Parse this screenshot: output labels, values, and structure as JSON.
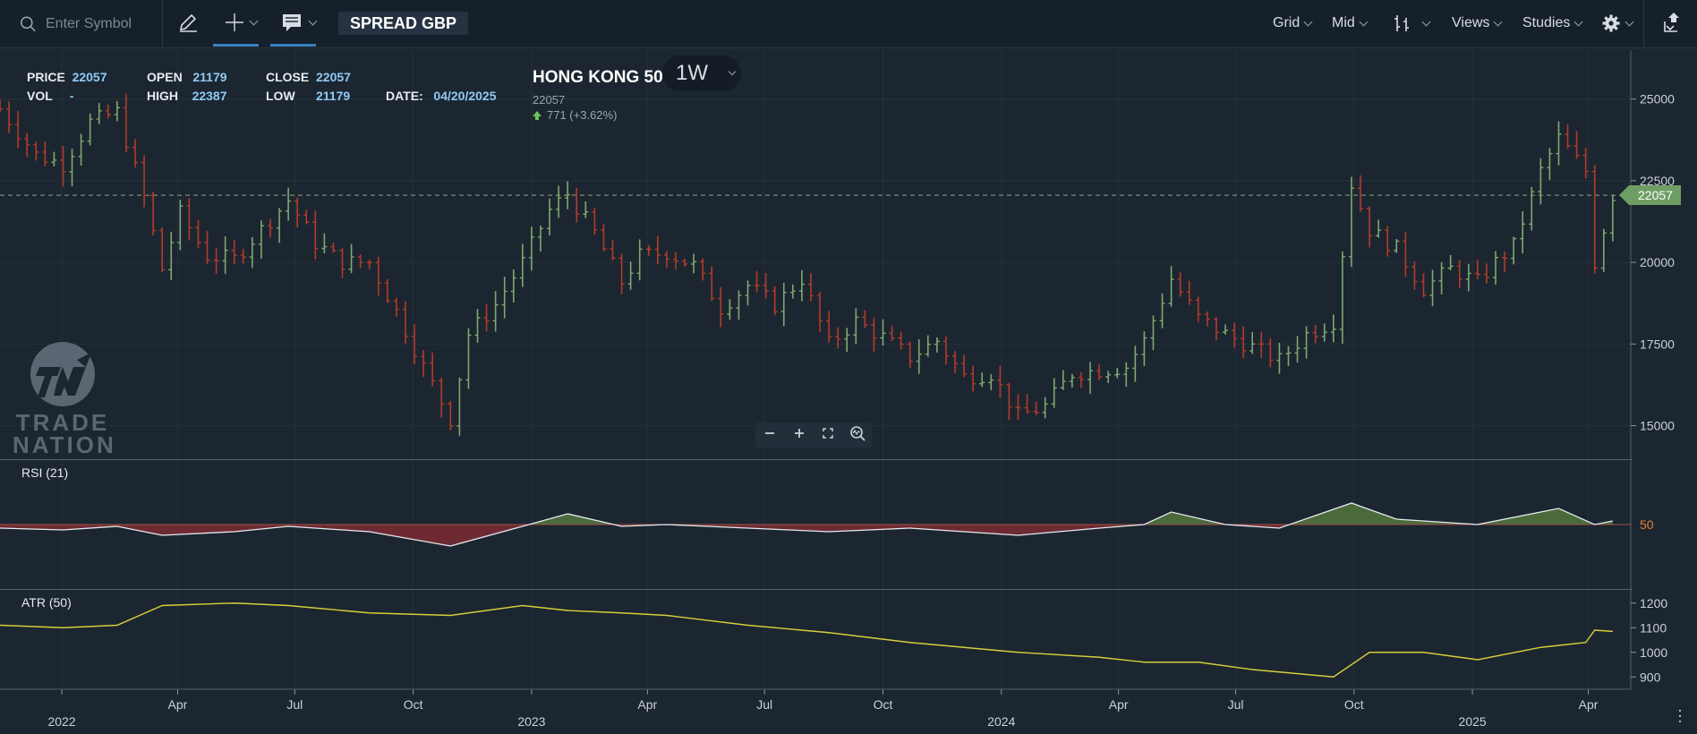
{
  "toolbar": {
    "search_placeholder": "Enter Symbol",
    "account_mode": "SPREAD GBP",
    "menus": [
      {
        "label": "Grid",
        "name": "grid-menu"
      },
      {
        "label": "Mid",
        "name": "mid-menu"
      },
      {
        "label": "Views",
        "name": "views-menu"
      },
      {
        "label": "Studies",
        "name": "studies-menu"
      }
    ],
    "icons": [
      "search-icon",
      "pencil-icon",
      "crosshair-icon",
      "comment-icon",
      "bar-chart-type-icon",
      "gear-icon",
      "export-icon"
    ]
  },
  "info": {
    "price_label": "PRICE",
    "price_value": "22057",
    "vol_label": "VOL",
    "vol_value": "-",
    "open_label": "OPEN",
    "open_value": "21179",
    "high_label": "HIGH",
    "high_value": "22387",
    "close_label": "CLOSE",
    "close_value": "22057",
    "low_label": "LOW",
    "low_value": "21179",
    "date_label": "DATE:",
    "date_value": "04/20/2025"
  },
  "instrument": {
    "name": "HONG KONG 50",
    "timeframe": "1W",
    "last": "22057",
    "change": "771 (+3.62%)"
  },
  "current_price_tag": "22057",
  "panes": {
    "rsi_label": "RSI (21)",
    "atr_label": "ATR (50)"
  },
  "logo": {
    "line1": "TRADE",
    "line2": "NATION"
  },
  "zoom_controls": [
    "zoom-out",
    "zoom-in",
    "fit",
    "reset-zoom"
  ],
  "colors": {
    "up": "#7fa870",
    "down": "#b23b2b",
    "rsi_fill_up": "#4b6a3c",
    "rsi_fill_down": "#6e2a33",
    "atr_line": "#d6cf3a",
    "price_tag": "#6e9e63"
  },
  "chart_data": {
    "type": "ohlc",
    "timeframe": "weekly",
    "x_labels": [
      {
        "label": "2022",
        "date": "2022-01-01",
        "bold": true
      },
      {
        "label": "Apr",
        "date": "2022-04-01"
      },
      {
        "label": "Jul",
        "date": "2022-07-01"
      },
      {
        "label": "Oct",
        "date": "2022-10-01"
      },
      {
        "label": "2023",
        "date": "2023-01-01",
        "bold": true
      },
      {
        "label": "Apr",
        "date": "2023-04-01"
      },
      {
        "label": "Jul",
        "date": "2023-07-01"
      },
      {
        "label": "Oct",
        "date": "2023-10-01"
      },
      {
        "label": "2024",
        "date": "2024-01-01",
        "bold": true
      },
      {
        "label": "Apr",
        "date": "2024-04-01"
      },
      {
        "label": "Jul",
        "date": "2024-07-01"
      },
      {
        "label": "Oct",
        "date": "2024-10-01"
      },
      {
        "label": "2025",
        "date": "2025-01-01",
        "bold": true
      },
      {
        "label": "Apr",
        "date": "2025-04-01"
      }
    ],
    "x_range": [
      "2021-11-14",
      "2025-05-04"
    ],
    "price_axis": {
      "ticks": [
        15000,
        17500,
        20000,
        22500,
        25000
      ],
      "range": [
        14000,
        26500
      ]
    },
    "current_price": 22057,
    "close_path": [
      [
        "2021-11-14",
        24700
      ],
      [
        "2021-12-12",
        23300
      ],
      [
        "2022-01-02",
        23000
      ],
      [
        "2022-01-23",
        24300
      ],
      [
        "2022-02-13",
        24600
      ],
      [
        "2022-03-06",
        22000
      ],
      [
        "2022-03-20",
        19800
      ],
      [
        "2022-04-03",
        21500
      ],
      [
        "2022-04-24",
        20200
      ],
      [
        "2022-05-15",
        20100
      ],
      [
        "2022-06-05",
        21000
      ],
      [
        "2022-06-26",
        21900
      ],
      [
        "2022-07-17",
        20600
      ],
      [
        "2022-08-07",
        20000
      ],
      [
        "2022-08-28",
        20000
      ],
      [
        "2022-09-18",
        18500
      ],
      [
        "2022-10-09",
        16800
      ],
      [
        "2022-10-30",
        15200
      ],
      [
        "2022-11-13",
        17800
      ],
      [
        "2022-12-04",
        18700
      ],
      [
        "2022-12-25",
        20000
      ],
      [
        "2023-01-15",
        21600
      ],
      [
        "2023-01-29",
        22100
      ],
      [
        "2023-02-19",
        20900
      ],
      [
        "2023-03-12",
        19400
      ],
      [
        "2023-03-26",
        20200
      ],
      [
        "2023-04-16",
        20300
      ],
      [
        "2023-05-07",
        19900
      ],
      [
        "2023-05-28",
        18600
      ],
      [
        "2023-06-18",
        19300
      ],
      [
        "2023-07-09",
        18700
      ],
      [
        "2023-07-30",
        19500
      ],
      [
        "2023-08-20",
        17500
      ],
      [
        "2023-09-10",
        18200
      ],
      [
        "2023-10-01",
        17700
      ],
      [
        "2023-10-22",
        17100
      ],
      [
        "2023-11-12",
        17600
      ],
      [
        "2023-12-03",
        16500
      ],
      [
        "2023-12-24",
        16600
      ],
      [
        "2024-01-14",
        15300
      ],
      [
        "2024-02-04",
        15600
      ],
      [
        "2024-02-25",
        16600
      ],
      [
        "2024-03-17",
        16700
      ],
      [
        "2024-04-07",
        16800
      ],
      [
        "2024-04-21",
        17600
      ],
      [
        "2024-05-12",
        19500
      ],
      [
        "2024-06-02",
        18300
      ],
      [
        "2024-06-23",
        17800
      ],
      [
        "2024-07-14",
        17400
      ],
      [
        "2024-08-04",
        17000
      ],
      [
        "2024-08-25",
        17800
      ],
      [
        "2024-09-15",
        18200
      ],
      [
        "2024-09-29",
        22400
      ],
      [
        "2024-10-13",
        21000
      ],
      [
        "2024-11-03",
        20400
      ],
      [
        "2024-11-24",
        19200
      ],
      [
        "2024-12-15",
        19800
      ],
      [
        "2025-01-05",
        19400
      ],
      [
        "2025-01-19",
        20000
      ],
      [
        "2025-02-02",
        20500
      ],
      [
        "2025-02-23",
        22800
      ],
      [
        "2025-03-09",
        23800
      ],
      [
        "2025-03-30",
        22800
      ],
      [
        "2025-04-06",
        20000
      ],
      [
        "2025-04-20",
        22057
      ]
    ],
    "rsi": {
      "label": "RSI (21)",
      "midline": 50,
      "points": [
        [
          "2021-11-14",
          48
        ],
        [
          "2022-01-02",
          47
        ],
        [
          "2022-02-13",
          49
        ],
        [
          "2022-03-20",
          44
        ],
        [
          "2022-05-15",
          46
        ],
        [
          "2022-06-26",
          49
        ],
        [
          "2022-08-28",
          46
        ],
        [
          "2022-10-30",
          38
        ],
        [
          "2022-12-25",
          49
        ],
        [
          "2023-01-29",
          56
        ],
        [
          "2023-03-12",
          49
        ],
        [
          "2023-04-16",
          50
        ],
        [
          "2023-06-18",
          48
        ],
        [
          "2023-08-20",
          46
        ],
        [
          "2023-10-22",
          48
        ],
        [
          "2024-01-14",
          44
        ],
        [
          "2024-03-17",
          48
        ],
        [
          "2024-04-21",
          50
        ],
        [
          "2024-05-12",
          57
        ],
        [
          "2024-06-23",
          50
        ],
        [
          "2024-08-04",
          48
        ],
        [
          "2024-09-29",
          62
        ],
        [
          "2024-11-03",
          53
        ],
        [
          "2025-01-05",
          50
        ],
        [
          "2025-03-09",
          59
        ],
        [
          "2025-04-06",
          50
        ],
        [
          "2025-04-20",
          52
        ]
      ]
    },
    "atr": {
      "label": "ATR (50)",
      "ticks": [
        900,
        1000,
        1100,
        1200
      ],
      "range": [
        850,
        1250
      ],
      "points": [
        [
          "2021-11-14",
          1110
        ],
        [
          "2022-01-02",
          1100
        ],
        [
          "2022-02-13",
          1110
        ],
        [
          "2022-03-20",
          1190
        ],
        [
          "2022-05-15",
          1200
        ],
        [
          "2022-06-26",
          1190
        ],
        [
          "2022-08-28",
          1160
        ],
        [
          "2022-10-30",
          1150
        ],
        [
          "2022-12-25",
          1190
        ],
        [
          "2023-01-29",
          1170
        ],
        [
          "2023-03-12",
          1160
        ],
        [
          "2023-04-16",
          1150
        ],
        [
          "2023-06-18",
          1110
        ],
        [
          "2023-08-20",
          1080
        ],
        [
          "2023-10-22",
          1040
        ],
        [
          "2024-01-14",
          1000
        ],
        [
          "2024-03-17",
          980
        ],
        [
          "2024-04-21",
          960
        ],
        [
          "2024-06-02",
          960
        ],
        [
          "2024-07-14",
          930
        ],
        [
          "2024-09-15",
          900
        ],
        [
          "2024-10-13",
          1000
        ],
        [
          "2024-11-24",
          1000
        ],
        [
          "2025-01-05",
          970
        ],
        [
          "2025-02-23",
          1020
        ],
        [
          "2025-03-30",
          1040
        ],
        [
          "2025-04-06",
          1090
        ],
        [
          "2025-04-20",
          1085
        ]
      ]
    }
  }
}
